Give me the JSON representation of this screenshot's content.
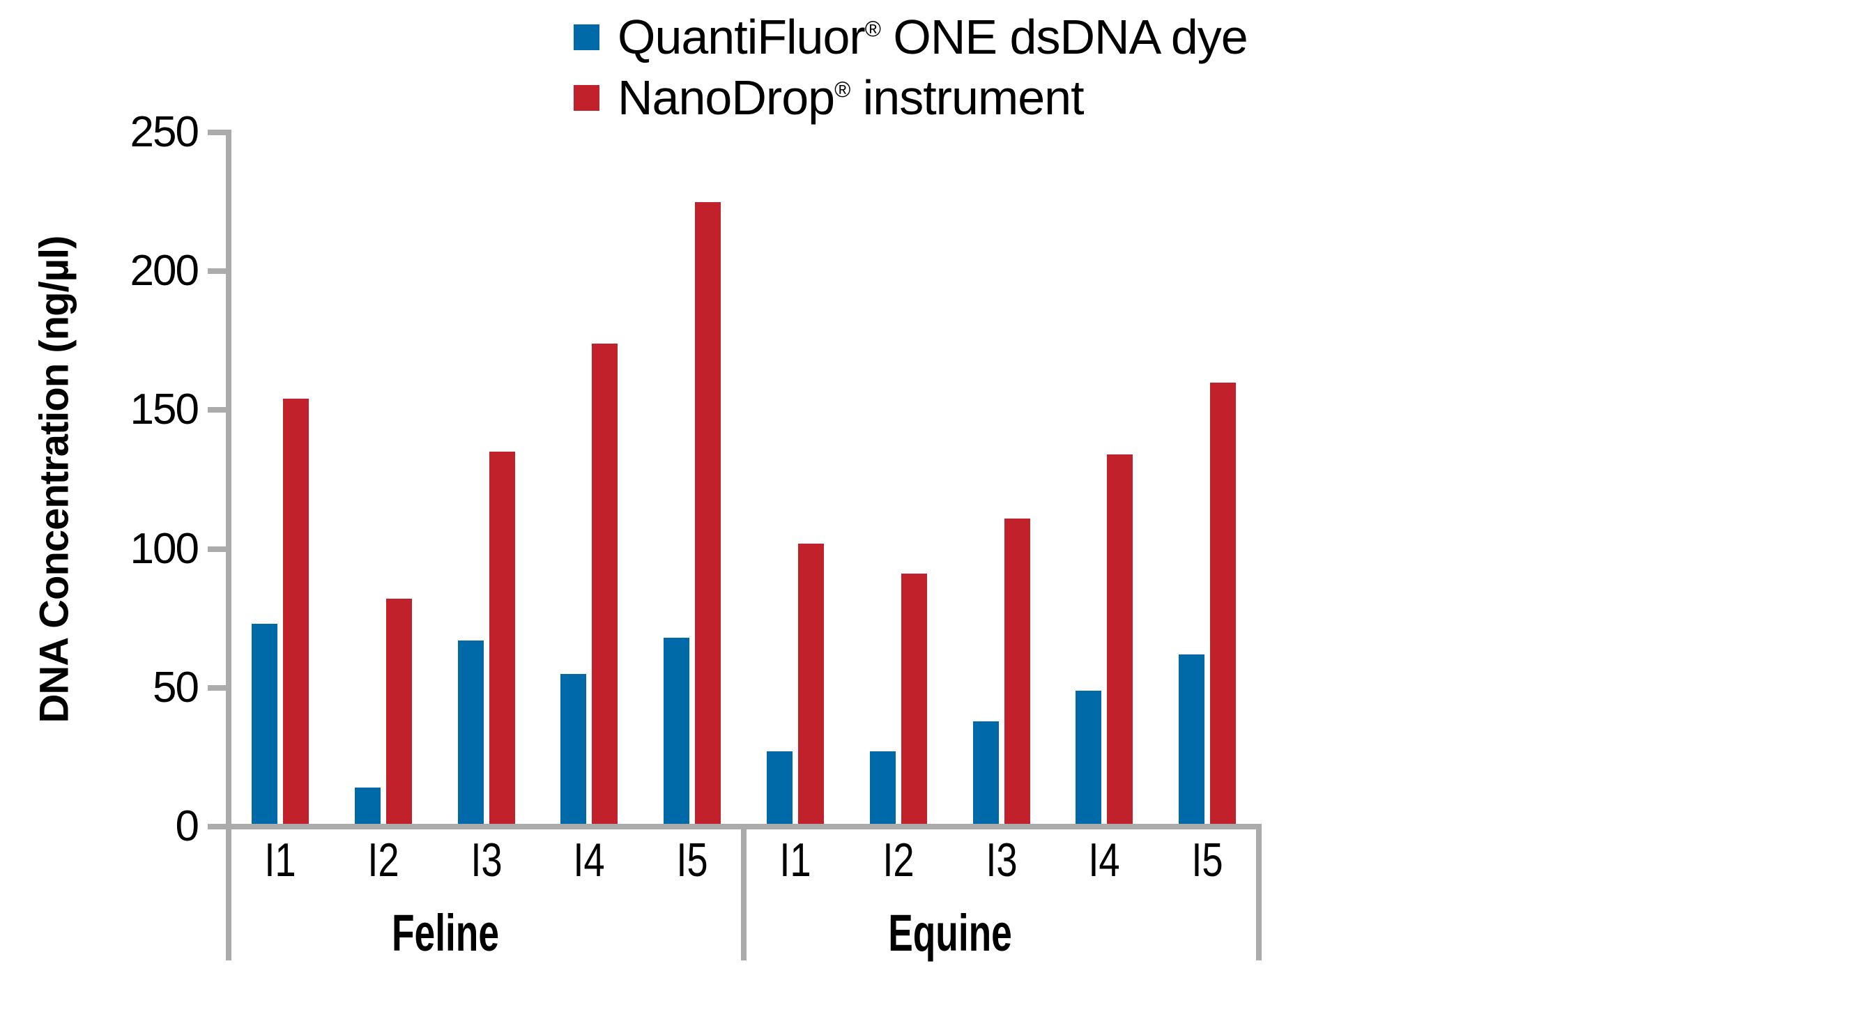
{
  "chart_data": {
    "type": "bar",
    "title": "",
    "ylabel": "DNA Concentration (ng/µl)",
    "ylim": [
      0,
      250
    ],
    "yticks": [
      0,
      50,
      100,
      150,
      200,
      250
    ],
    "grid": false,
    "legend_position": "top-center",
    "groups": [
      {
        "label": "Feline",
        "categories": [
          "I1",
          "I2",
          "I3",
          "I4",
          "I5"
        ]
      },
      {
        "label": "Equine",
        "categories": [
          "I1",
          "I2",
          "I3",
          "I4",
          "I5"
        ]
      }
    ],
    "series": [
      {
        "name": "QuantiFluor® ONE dsDNA dye",
        "label_base": "QuantiFluor",
        "label_reg": "®",
        "label_rest": " ONE dsDNA dye",
        "color": "#0069a8",
        "values": [
          [
            72,
            13,
            66,
            54,
            67
          ],
          [
            26,
            26,
            37,
            48,
            61
          ]
        ]
      },
      {
        "name": "NanoDrop® instrument",
        "label_base": "NanoDrop",
        "label_reg": "®",
        "label_rest": " instrument",
        "color": "#c1212a",
        "values": [
          [
            153,
            81,
            134,
            173,
            224
          ],
          [
            101,
            90,
            110,
            133,
            159
          ]
        ]
      }
    ],
    "axis_color": "#ababab",
    "text_color": "#000000"
  }
}
